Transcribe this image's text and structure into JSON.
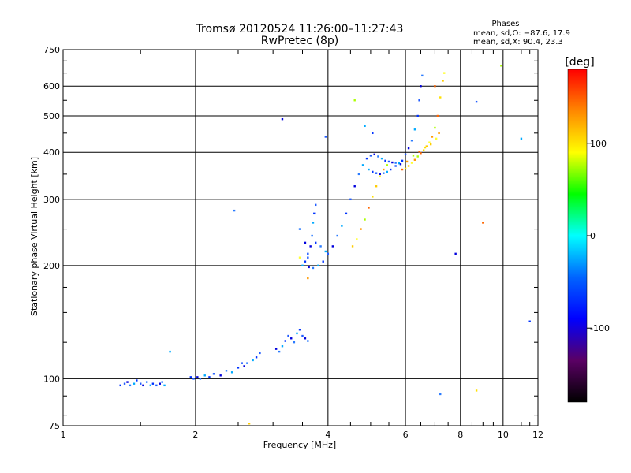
{
  "chart_data": {
    "type": "scatter",
    "title": "Tromsø 20120524 11:26:00–11:27:43",
    "subtitle": "RwPretec (8p)",
    "xlabel": "Frequency [MHz]",
    "ylabel": "Stationary phase Virtual Height [km]",
    "x_scale": "log",
    "y_scale": "log",
    "xlim": [
      1,
      12
    ],
    "ylim": [
      75,
      750
    ],
    "x_ticks": [
      1,
      2,
      4,
      6,
      8,
      10,
      12
    ],
    "y_ticks": [
      75,
      100,
      200,
      300,
      400,
      500,
      600,
      750
    ],
    "grid": true,
    "phases_box": {
      "title": "Phases",
      "line1": "mean, sd,O: −87.6, 17.9",
      "line2": "mean, sd,X:  90.4, 23.3"
    },
    "colorbar": {
      "label": "[deg]",
      "ticks": [
        100,
        0,
        -100
      ],
      "range": [
        -180,
        180
      ],
      "colors": [
        "#000000",
        "#5a0064",
        "#0000ff",
        "#0064ff",
        "#00ffff",
        "#00ff00",
        "#ffff00",
        "#ff8800",
        "#ff0000"
      ]
    },
    "series": [
      {
        "type": "O-mode (blue)",
        "phase_mean": -87.6,
        "points": [
          [
            1.35,
            96
          ],
          [
            1.38,
            97
          ],
          [
            1.4,
            98
          ],
          [
            1.42,
            96
          ],
          [
            1.45,
            97
          ],
          [
            1.47,
            99
          ],
          [
            1.5,
            97
          ],
          [
            1.52,
            96
          ],
          [
            1.55,
            98
          ],
          [
            1.58,
            96
          ],
          [
            1.6,
            97
          ],
          [
            1.63,
            96
          ],
          [
            1.66,
            97
          ],
          [
            1.68,
            98
          ],
          [
            1.7,
            96
          ],
          [
            1.95,
            101
          ],
          [
            1.98,
            100
          ],
          [
            2.02,
            101
          ],
          [
            2.05,
            100
          ],
          [
            2.1,
            102
          ],
          [
            2.15,
            101
          ],
          [
            2.2,
            103
          ],
          [
            2.28,
            102
          ],
          [
            2.35,
            105
          ],
          [
            2.42,
            104
          ],
          [
            2.5,
            107
          ],
          [
            2.55,
            110
          ],
          [
            2.58,
            108
          ],
          [
            2.62,
            110
          ],
          [
            2.7,
            112
          ],
          [
            2.75,
            114
          ],
          [
            2.8,
            117
          ],
          [
            3.05,
            120
          ],
          [
            3.1,
            118
          ],
          [
            3.15,
            122
          ],
          [
            3.2,
            126
          ],
          [
            3.25,
            130
          ],
          [
            3.3,
            128
          ],
          [
            3.35,
            125
          ],
          [
            3.4,
            132
          ],
          [
            3.45,
            135
          ],
          [
            3.5,
            130
          ],
          [
            3.55,
            128
          ],
          [
            3.6,
            126
          ],
          [
            3.5,
            200
          ],
          [
            3.55,
            205
          ],
          [
            3.6,
            215
          ],
          [
            3.65,
            225
          ],
          [
            3.68,
            240
          ],
          [
            3.7,
            260
          ],
          [
            3.72,
            275
          ],
          [
            3.75,
            290
          ],
          [
            3.62,
            198
          ],
          [
            3.7,
            197
          ],
          [
            3.8,
            200
          ],
          [
            3.9,
            205
          ],
          [
            4.0,
            215
          ],
          [
            4.1,
            225
          ],
          [
            4.2,
            240
          ],
          [
            4.3,
            255
          ],
          [
            4.4,
            275
          ],
          [
            4.5,
            300
          ],
          [
            4.6,
            325
          ],
          [
            4.7,
            350
          ],
          [
            4.8,
            370
          ],
          [
            4.9,
            385
          ],
          [
            5.0,
            392
          ],
          [
            5.1,
            395
          ],
          [
            5.2,
            390
          ],
          [
            5.3,
            385
          ],
          [
            5.4,
            380
          ],
          [
            5.5,
            378
          ],
          [
            5.6,
            376
          ],
          [
            5.7,
            375
          ],
          [
            5.8,
            374
          ],
          [
            5.9,
            380
          ],
          [
            6.0,
            395
          ],
          [
            6.1,
            410
          ],
          [
            6.2,
            430
          ],
          [
            6.3,
            460
          ],
          [
            6.4,
            500
          ],
          [
            6.45,
            550
          ],
          [
            6.5,
            600
          ],
          [
            6.55,
            640
          ],
          [
            4.95,
            360
          ],
          [
            5.05,
            355
          ],
          [
            5.15,
            352
          ],
          [
            5.25,
            350
          ],
          [
            5.35,
            352
          ],
          [
            5.45,
            355
          ],
          [
            5.55,
            360
          ],
          [
            5.7,
            368
          ],
          [
            5.85,
            372
          ],
          [
            3.85,
            225
          ],
          [
            3.95,
            218
          ],
          [
            3.75,
            230
          ],
          [
            3.6,
            210
          ],
          [
            3.55,
            230
          ],
          [
            3.45,
            250
          ],
          [
            4.85,
            470
          ],
          [
            5.05,
            450
          ],
          [
            3.95,
            440
          ],
          [
            3.15,
            490
          ],
          [
            2.45,
            280
          ],
          [
            11.0,
            435
          ],
          [
            11.5,
            142
          ],
          [
            8.7,
            545
          ],
          [
            7.8,
            215
          ],
          [
            7.2,
            91
          ],
          [
            1.75,
            118
          ]
        ]
      },
      {
        "type": "X-mode (yellow/green/red)",
        "phase_mean": 90.4,
        "points": [
          [
            4.55,
            225
          ],
          [
            4.65,
            235
          ],
          [
            4.75,
            250
          ],
          [
            4.85,
            265
          ],
          [
            4.95,
            285
          ],
          [
            5.05,
            305
          ],
          [
            5.15,
            325
          ],
          [
            5.25,
            345
          ],
          [
            5.35,
            360
          ],
          [
            5.45,
            370
          ],
          [
            5.9,
            360
          ],
          [
            6.0,
            362
          ],
          [
            6.1,
            368
          ],
          [
            6.2,
            375
          ],
          [
            6.3,
            382
          ],
          [
            6.4,
            390
          ],
          [
            6.5,
            398
          ],
          [
            6.6,
            405
          ],
          [
            6.7,
            415
          ],
          [
            6.8,
            425
          ],
          [
            6.9,
            440
          ],
          [
            7.0,
            465
          ],
          [
            7.1,
            500
          ],
          [
            7.2,
            560
          ],
          [
            7.3,
            620
          ],
          [
            7.35,
            650
          ],
          [
            6.05,
            378
          ],
          [
            6.25,
            392
          ],
          [
            6.45,
            402
          ],
          [
            6.65,
            412
          ],
          [
            6.85,
            420
          ],
          [
            7.05,
            435
          ],
          [
            7.15,
            450
          ],
          [
            9.9,
            680
          ],
          [
            9.0,
            260
          ],
          [
            8.7,
            93
          ],
          [
            2.65,
            76
          ],
          [
            3.45,
            210
          ],
          [
            3.6,
            185
          ],
          [
            4.6,
            550
          ],
          [
            7.0,
            600
          ]
        ]
      }
    ]
  }
}
